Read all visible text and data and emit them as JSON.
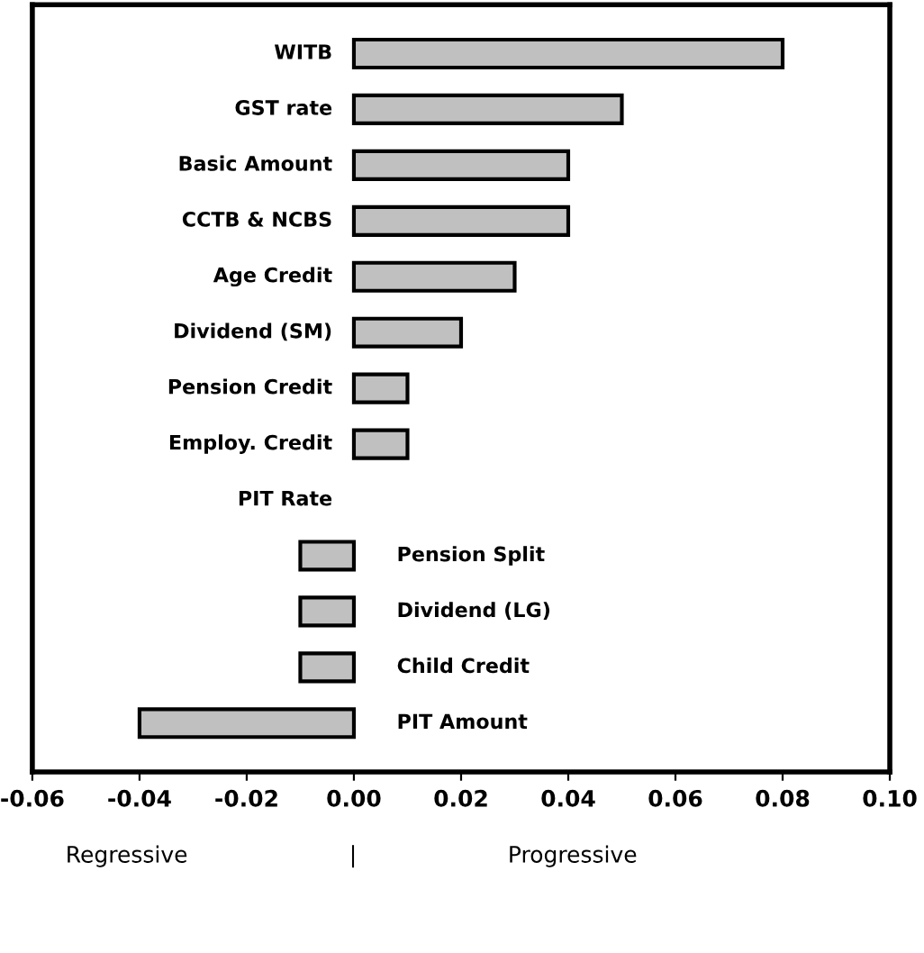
{
  "chart_data": {
    "type": "bar",
    "orientation": "horizontal",
    "categories": [
      "WITB",
      "GST rate",
      "Basic Amount",
      "CCTB & NCBS",
      "Age Credit",
      "Dividend (SM)",
      "Pension Credit",
      "Employ. Credit",
      "PIT Rate",
      "Pension Split",
      "Dividend (LG)",
      "Child Credit",
      "PIT Amount"
    ],
    "values": [
      0.08,
      0.05,
      0.04,
      0.04,
      0.03,
      0.02,
      0.01,
      0.01,
      null,
      -0.01,
      -0.01,
      -0.01,
      -0.04
    ],
    "color": "#c0c0c0",
    "xlim": [
      -0.06,
      0.1
    ],
    "xticks": [
      {
        "value": -0.06,
        "label": "-0.06"
      },
      {
        "value": -0.04,
        "label": "-0.04"
      },
      {
        "value": -0.02,
        "label": "-0.02"
      },
      {
        "value": 0,
        "label": "0.00"
      },
      {
        "value": 0.02,
        "label": "0.02"
      },
      {
        "value": 0.04,
        "label": "0.04"
      },
      {
        "value": 0.06,
        "label": "0.06"
      },
      {
        "value": 0.08,
        "label": "0.08"
      },
      {
        "value": 0.1,
        "label": "0.10"
      }
    ],
    "grid": false,
    "tick_labels": "x",
    "annotations": [
      "Regressive",
      "|",
      "Progressive"
    ]
  }
}
